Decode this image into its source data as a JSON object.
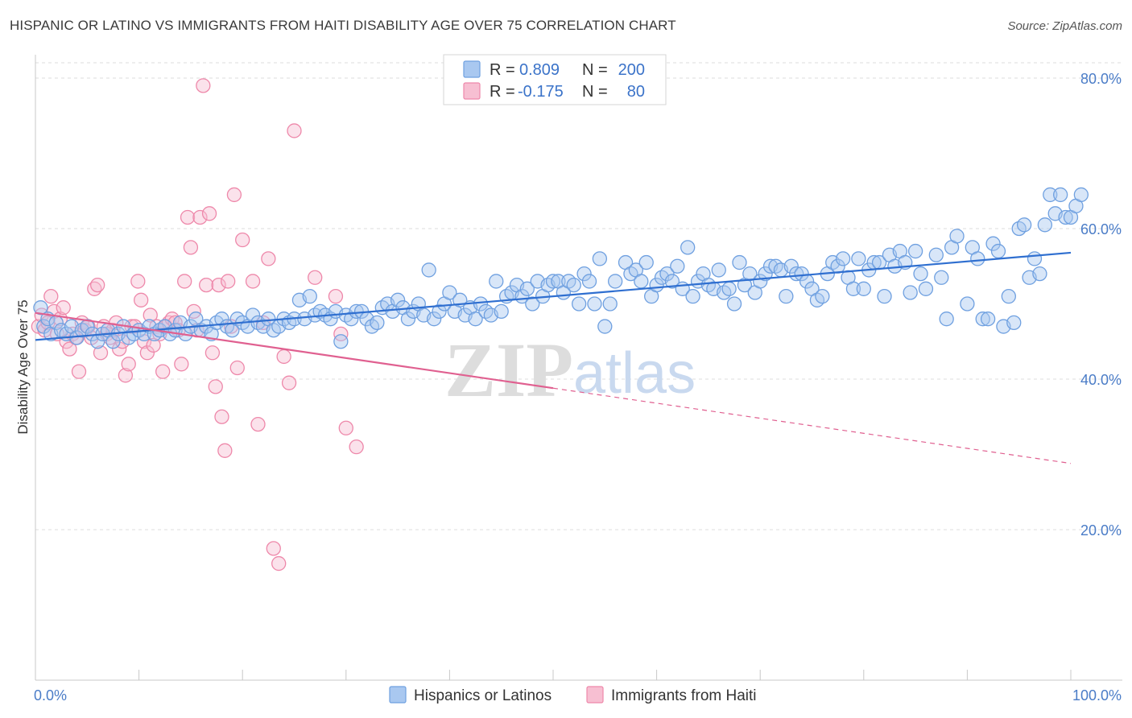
{
  "title": "HISPANIC OR LATINO VS IMMIGRANTS FROM HAITI DISABILITY AGE OVER 75 CORRELATION CHART",
  "source": "Source: ZipAtlas.com",
  "watermark": {
    "zip": "ZIP",
    "atlas": "atlas"
  },
  "colors": {
    "blue": "#6fa0e0",
    "blue_fill": "#a9c8f0",
    "blue_line": "#2f6fd0",
    "pink": "#ee88aa",
    "pink_fill": "#f7bfd2",
    "pink_line": "#e06090",
    "tick_text": "#4a7cc7"
  },
  "legend": {
    "rows": [
      {
        "r_label": "R =",
        "r_value": "0.809",
        "n_label": "N =",
        "n_value": "200"
      },
      {
        "r_label": "R =",
        "r_value": "-0.175",
        "n_label": "N =",
        "n_value": "80"
      }
    ],
    "placement": "top-center"
  },
  "chart_data": {
    "type": "scatter",
    "ylabel": "Disability Age Over 75",
    "xlim": [
      0,
      100
    ],
    "ylim": [
      0,
      85
    ],
    "x_tick_labels": [
      "0.0%",
      "100.0%"
    ],
    "y_ticks": [
      {
        "value": 20,
        "label": "20.0%"
      },
      {
        "value": 40,
        "label": "40.0%"
      },
      {
        "value": 60,
        "label": "60.0%"
      },
      {
        "value": 80,
        "label": "80.0%"
      }
    ],
    "grid": "horizontal dashed",
    "series": [
      {
        "name": "Hispanics or Latinos",
        "trend": {
          "x0": 0,
          "y0": 45.2,
          "x1": 100,
          "y1": 56.8,
          "solid_until": 100
        },
        "points": [
          [
            0.5,
            49.5
          ],
          [
            0.8,
            47
          ],
          [
            1.2,
            48
          ],
          [
            1.5,
            46
          ],
          [
            2,
            47.5
          ],
          [
            2.5,
            46.5
          ],
          [
            3,
            46
          ],
          [
            3.5,
            47
          ],
          [
            4,
            45.5
          ],
          [
            4.5,
            46.5
          ],
          [
            5,
            47
          ],
          [
            5.5,
            46
          ],
          [
            6,
            45
          ],
          [
            6.5,
            46
          ],
          [
            7,
            46.5
          ],
          [
            7.5,
            45
          ],
          [
            8,
            46
          ],
          [
            8.5,
            47
          ],
          [
            9,
            45.5
          ],
          [
            9.5,
            46
          ],
          [
            10,
            46.5
          ],
          [
            10.5,
            46
          ],
          [
            11,
            47
          ],
          [
            11.5,
            46
          ],
          [
            12,
            46.5
          ],
          [
            12.5,
            47
          ],
          [
            13,
            46
          ],
          [
            13.5,
            46.5
          ],
          [
            14,
            47.5
          ],
          [
            14.5,
            46
          ],
          [
            15,
            47
          ],
          [
            15.5,
            48
          ],
          [
            16,
            46.5
          ],
          [
            16.5,
            47
          ],
          [
            17,
            46
          ],
          [
            17.5,
            47.5
          ],
          [
            18,
            48
          ],
          [
            18.5,
            47
          ],
          [
            19,
            46.5
          ],
          [
            19.5,
            48
          ],
          [
            20,
            47.5
          ],
          [
            20.5,
            47
          ],
          [
            21,
            48.5
          ],
          [
            21.5,
            47.5
          ],
          [
            22,
            47
          ],
          [
            22.5,
            48
          ],
          [
            23,
            46.5
          ],
          [
            23.5,
            47
          ],
          [
            24,
            48
          ],
          [
            24.5,
            47.5
          ],
          [
            25,
            48
          ],
          [
            25.5,
            50.5
          ],
          [
            26,
            48
          ],
          [
            26.5,
            51
          ],
          [
            27,
            48.5
          ],
          [
            27.5,
            49
          ],
          [
            28,
            48.5
          ],
          [
            28.5,
            48
          ],
          [
            29,
            49
          ],
          [
            29.5,
            45
          ],
          [
            30,
            48.5
          ],
          [
            30.5,
            48
          ],
          [
            31,
            49
          ],
          [
            31.5,
            49
          ],
          [
            32,
            48
          ],
          [
            32.5,
            47
          ],
          [
            33,
            47.5
          ],
          [
            33.5,
            49.5
          ],
          [
            34,
            50
          ],
          [
            34.5,
            49
          ],
          [
            35,
            50.5
          ],
          [
            35.5,
            49.5
          ],
          [
            36,
            48
          ],
          [
            36.5,
            49
          ],
          [
            37,
            50
          ],
          [
            37.5,
            48.5
          ],
          [
            38,
            54.5
          ],
          [
            38.5,
            48
          ],
          [
            39,
            49
          ],
          [
            39.5,
            50
          ],
          [
            40,
            51.5
          ],
          [
            40.5,
            49
          ],
          [
            41,
            50.5
          ],
          [
            41.5,
            48.5
          ],
          [
            42,
            49.5
          ],
          [
            42.5,
            48
          ],
          [
            43,
            50
          ],
          [
            43.5,
            49
          ],
          [
            44,
            48.5
          ],
          [
            44.5,
            53
          ],
          [
            45,
            49
          ],
          [
            45.5,
            51
          ],
          [
            46,
            51.5
          ],
          [
            46.5,
            52.5
          ],
          [
            47,
            51
          ],
          [
            47.5,
            52
          ],
          [
            48,
            50
          ],
          [
            48.5,
            53
          ],
          [
            49,
            51
          ],
          [
            49.5,
            52.5
          ],
          [
            50,
            53
          ],
          [
            50.5,
            53
          ],
          [
            51,
            51.5
          ],
          [
            51.5,
            53
          ],
          [
            52,
            52.5
          ],
          [
            52.5,
            50
          ],
          [
            53,
            54
          ],
          [
            53.5,
            53
          ],
          [
            54,
            50
          ],
          [
            54.5,
            56
          ],
          [
            55,
            47
          ],
          [
            55.5,
            50
          ],
          [
            56,
            53
          ],
          [
            57,
            55.5
          ],
          [
            57.5,
            54
          ],
          [
            58,
            54.5
          ],
          [
            58.5,
            53
          ],
          [
            59,
            55.5
          ],
          [
            59.5,
            51
          ],
          [
            60,
            52.5
          ],
          [
            60.5,
            53.5
          ],
          [
            61,
            54
          ],
          [
            61.5,
            53
          ],
          [
            62,
            55
          ],
          [
            62.5,
            52
          ],
          [
            63,
            57.5
          ],
          [
            63.5,
            51
          ],
          [
            64,
            53
          ],
          [
            64.5,
            54
          ],
          [
            65,
            52.5
          ],
          [
            65.5,
            52
          ],
          [
            66,
            54.5
          ],
          [
            66.5,
            51.5
          ],
          [
            67,
            52
          ],
          [
            67.5,
            50
          ],
          [
            68,
            55.5
          ],
          [
            68.5,
            52.5
          ],
          [
            69,
            54
          ],
          [
            69.5,
            51.5
          ],
          [
            70,
            53
          ],
          [
            70.5,
            54
          ],
          [
            71,
            55
          ],
          [
            71.5,
            55
          ],
          [
            72,
            54.5
          ],
          [
            72.5,
            51
          ],
          [
            73,
            55
          ],
          [
            73.5,
            54
          ],
          [
            74,
            54
          ],
          [
            74.5,
            53
          ],
          [
            75,
            52
          ],
          [
            75.5,
            50.5
          ],
          [
            76,
            51
          ],
          [
            76.5,
            54
          ],
          [
            77,
            55.5
          ],
          [
            77.5,
            55
          ],
          [
            78,
            56
          ],
          [
            78.5,
            53.5
          ],
          [
            79,
            52
          ],
          [
            79.5,
            56
          ],
          [
            80,
            52
          ],
          [
            80.5,
            54.5
          ],
          [
            81,
            55.5
          ],
          [
            81.5,
            55.5
          ],
          [
            82,
            51
          ],
          [
            82.5,
            56.5
          ],
          [
            83,
            55
          ],
          [
            83.5,
            57
          ],
          [
            84,
            55.5
          ],
          [
            84.5,
            51.5
          ],
          [
            85,
            57
          ],
          [
            85.5,
            54
          ],
          [
            86,
            52
          ],
          [
            87,
            56.5
          ],
          [
            87.5,
            53.5
          ],
          [
            88,
            48
          ],
          [
            88.5,
            57.5
          ],
          [
            89,
            59
          ],
          [
            90,
            50
          ],
          [
            90.5,
            57.5
          ],
          [
            91,
            56
          ],
          [
            91.5,
            48
          ],
          [
            92,
            48
          ],
          [
            92.5,
            58
          ],
          [
            93,
            57
          ],
          [
            93.5,
            47
          ],
          [
            94,
            51
          ],
          [
            94.5,
            47.5
          ],
          [
            95,
            60
          ],
          [
            95.5,
            60.5
          ],
          [
            96,
            53.5
          ],
          [
            96.5,
            56
          ],
          [
            97,
            54
          ],
          [
            97.5,
            60.5
          ],
          [
            98,
            64.5
          ],
          [
            98.5,
            62
          ],
          [
            99,
            64.5
          ],
          [
            99.5,
            61.5
          ],
          [
            100,
            61.5
          ],
          [
            100.5,
            63
          ],
          [
            101,
            64.5
          ]
        ]
      },
      {
        "name": "Immigrants from Haiti",
        "trend": {
          "x0": 0,
          "y0": 48.8,
          "x1": 100,
          "y1": 28.8,
          "solid_until": 50
        },
        "points": [
          [
            0.3,
            47
          ],
          [
            0.6,
            48.5
          ],
          [
            0.9,
            46.5
          ],
          [
            1.2,
            47.5
          ],
          [
            1.5,
            51
          ],
          [
            1.8,
            49
          ],
          [
            2.1,
            46
          ],
          [
            2.4,
            48
          ],
          [
            2.7,
            49.5
          ],
          [
            3,
            45
          ],
          [
            3.3,
            44
          ],
          [
            3.6,
            46
          ],
          [
            3.9,
            45.5
          ],
          [
            4.2,
            41
          ],
          [
            4.5,
            47.5
          ],
          [
            4.8,
            46.5
          ],
          [
            5.1,
            47
          ],
          [
            5.4,
            45.5
          ],
          [
            5.7,
            52
          ],
          [
            6,
            52.5
          ],
          [
            6.3,
            43.5
          ],
          [
            6.6,
            47
          ],
          [
            6.9,
            46
          ],
          [
            7.2,
            45.5
          ],
          [
            7.5,
            46.5
          ],
          [
            7.8,
            47.5
          ],
          [
            8.1,
            44
          ],
          [
            8.4,
            45
          ],
          [
            8.7,
            40.5
          ],
          [
            9,
            42
          ],
          [
            9.3,
            47
          ],
          [
            9.6,
            47
          ],
          [
            9.9,
            53
          ],
          [
            10.2,
            50.5
          ],
          [
            10.5,
            45
          ],
          [
            10.8,
            43.5
          ],
          [
            11.1,
            48.5
          ],
          [
            11.4,
            44.5
          ],
          [
            11.7,
            47
          ],
          [
            12,
            46
          ],
          [
            12.3,
            41
          ],
          [
            12.6,
            47
          ],
          [
            12.9,
            47.5
          ],
          [
            13.2,
            48
          ],
          [
            13.5,
            47.5
          ],
          [
            13.8,
            46.5
          ],
          [
            14.1,
            42
          ],
          [
            14.4,
            53
          ],
          [
            14.7,
            61.5
          ],
          [
            15,
            57.5
          ],
          [
            15.3,
            49
          ],
          [
            15.6,
            46.5
          ],
          [
            15.9,
            61.5
          ],
          [
            16.2,
            79
          ],
          [
            16.5,
            52.5
          ],
          [
            16.8,
            62
          ],
          [
            17.1,
            43.5
          ],
          [
            17.4,
            39
          ],
          [
            17.7,
            52.5
          ],
          [
            18,
            35
          ],
          [
            18.3,
            30.5
          ],
          [
            18.6,
            53
          ],
          [
            18.9,
            47
          ],
          [
            19.2,
            64.5
          ],
          [
            19.5,
            41.5
          ],
          [
            20,
            58.5
          ],
          [
            21,
            53
          ],
          [
            21.5,
            34
          ],
          [
            22,
            47.5
          ],
          [
            22.5,
            56
          ],
          [
            23,
            17.5
          ],
          [
            23.5,
            15.5
          ],
          [
            24,
            43
          ],
          [
            24.5,
            39.5
          ],
          [
            25,
            73
          ],
          [
            27,
            53.5
          ],
          [
            29,
            51
          ],
          [
            29.5,
            46
          ],
          [
            30,
            33.5
          ],
          [
            31,
            31
          ]
        ]
      }
    ]
  },
  "bottom_legend": [
    {
      "label": "Hispanics or Latinos"
    },
    {
      "label": "Immigrants from Haiti"
    }
  ]
}
